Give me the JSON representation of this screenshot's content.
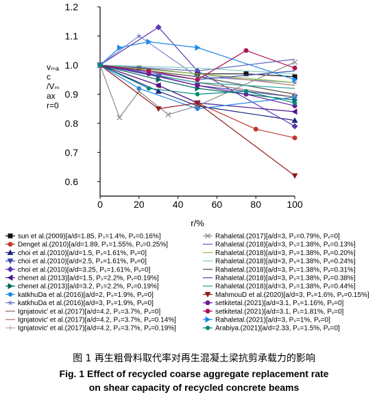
{
  "chart_data": {
    "type": "line",
    "xlabel": "r/%",
    "ylabel_lines": [
      "vₘₐ",
      "c",
      "/Vₘ",
      "ax",
      "r=0"
    ],
    "x_ticks": [
      0,
      20,
      40,
      60,
      80,
      100
    ],
    "y_ticks": [
      0.6,
      0.7,
      0.8,
      0.9,
      1.0,
      1.1,
      1.2
    ],
    "y_tick_labels": [
      "0.6",
      "0.7",
      "0.8",
      "0.9",
      "1.0",
      "1.1",
      "1.2"
    ],
    "xlim": [
      0,
      100
    ],
    "ylim": [
      0.55,
      1.2
    ],
    "grid": false,
    "legend_placement": "below",
    "series": [
      {
        "name": "sun et al.(2009)[a/d=1.85, Pₛ=1.4%, Pᵥ=0.16%]",
        "color": "#111111",
        "marker": "square",
        "x": [
          0,
          20,
          50,
          75,
          100
        ],
        "y": [
          1.0,
          0.99,
          0.97,
          0.97,
          0.96
        ]
      },
      {
        "name": "Denget al.(2010)[a/d=1.89, Pₛ=1.55%, Pᵥ=0.25%]",
        "color": "#c0392b",
        "marker": "circle",
        "x": [
          0,
          30,
          50,
          80,
          100
        ],
        "y": [
          1.0,
          0.93,
          0.87,
          0.78,
          0.75
        ]
      },
      {
        "name": "choi et al.(2010)[a/d=1.5, Pₛ=1.61%, Pᵥ=0]",
        "color": "#1a237e",
        "marker": "triangle",
        "x": [
          0,
          30,
          50,
          100
        ],
        "y": [
          1.0,
          0.91,
          0.86,
          0.81
        ]
      },
      {
        "name": "choi et al.(2010)[a/d=2.5, Pₛ=1.61%, Pᵥ=0]",
        "color": "#3949ab",
        "marker": "triangle-down",
        "x": [
          0,
          30,
          50,
          100
        ],
        "y": [
          1.0,
          0.96,
          0.93,
          0.89
        ]
      },
      {
        "name": "choi et al.(2010)[a/d=3.25, Pₛ=1.61%, Pᵥ=0]",
        "color": "#5e35b1",
        "marker": "diamond",
        "x": [
          0,
          30,
          50,
          100
        ],
        "y": [
          1.0,
          1.13,
          0.98,
          0.79
        ]
      },
      {
        "name": "chenet al.(2013)[a/d=1.5, Pₛ=2.2%, Pᵥ=0.19%]",
        "color": "#4a148c",
        "marker": "triangle-left",
        "x": [
          0,
          30,
          50,
          100
        ],
        "y": [
          1.0,
          0.93,
          0.87,
          0.84
        ]
      },
      {
        "name": "chenet al.(2013)[a/d=3.2, Pₛ=2.2%, Pᵥ=0.19%]",
        "color": "#00695c",
        "marker": "triangle-right",
        "x": [
          0,
          30,
          50,
          100
        ],
        "y": [
          1.0,
          0.95,
          0.92,
          0.88
        ]
      },
      {
        "name": "katkhuDa et al.(2016)[a/d=2, Pₛ=1.9%, Pᵥ=0]",
        "color": "#1e88e5",
        "marker": "hexagon",
        "x": [
          0,
          20,
          50,
          100
        ],
        "y": [
          1.0,
          0.92,
          0.85,
          0.89
        ]
      },
      {
        "name": "katkhuDa et al.(2016)[a/d=3, Pₛ=1.9%, Pᵥ=0]",
        "color": "#7986cb",
        "marker": "star",
        "x": [
          0,
          20,
          50,
          100
        ],
        "y": [
          1.0,
          1.1,
          0.96,
          0.94
        ]
      },
      {
        "name": "Ignjatovic' et al.(2017)[a/d=4.2, Pₛ=3.7%, Pᵥ=0]",
        "color": "#8d6e63",
        "marker": "none",
        "x": [
          0,
          50,
          100
        ],
        "y": [
          1.0,
          0.94,
          0.89
        ]
      },
      {
        "name": "Ignjatovic' et al.(2017)[a/d=4.2, Pₛ=3.7%, Pᵥ=0.14%]",
        "color": "#b07a6e",
        "marker": "none",
        "x": [
          0,
          50,
          100
        ],
        "y": [
          1.0,
          0.97,
          0.93
        ]
      },
      {
        "name": "Ignjatovic' et al.(2017)[a/d=4.2, Pₛ=3.7%, Pᵥ=0.19%]",
        "color": "#c9a9a1",
        "marker": "plus",
        "x": [
          0,
          50,
          100
        ],
        "y": [
          1.0,
          0.96,
          0.9
        ]
      },
      {
        "name": "Rahaletal.(2017)[a/d=3, Pₛ=0.79%, Pᵥ=0]",
        "color": "#888888",
        "marker": "x",
        "x": [
          0,
          10,
          20,
          35,
          50,
          100
        ],
        "y": [
          1.0,
          0.82,
          0.91,
          0.83,
          0.86,
          1.01
        ]
      },
      {
        "name": "Rahaletal.(2018)[a/d=3, Pₛ=1.38%, Pᵥ=0.13%]",
        "color": "#5c6bc0",
        "marker": "none",
        "x": [
          0,
          50,
          100
        ],
        "y": [
          1.0,
          0.98,
          1.02
        ]
      },
      {
        "name": "Rahaletal.(2018)[a/d=3, Pₛ=1.38%, Pᵥ=0.20%]",
        "color": "#8bc34a",
        "marker": "none",
        "x": [
          0,
          50,
          100
        ],
        "y": [
          1.0,
          0.97,
          0.94
        ]
      },
      {
        "name": "Rahaletal.(2018)[a/d=3, Pₛ=1.38%, Pᵥ=0.24%]",
        "color": "#80cbc4",
        "marker": "none",
        "x": [
          0,
          50,
          100
        ],
        "y": [
          1.0,
          0.99,
          0.97
        ]
      },
      {
        "name": "Rahaletal.(2018)[a/d=3, Pₛ=1.38%, Pᵥ=0.31%]",
        "color": "#555555",
        "marker": "none",
        "x": [
          0,
          50,
          100
        ],
        "y": [
          1.0,
          0.96,
          0.9
        ]
      },
      {
        "name": "Rahaletal.(2018)[a/d=3, Pₛ=1.38%, Pᵥ=0.38%]",
        "color": "#3f51b5",
        "marker": "none",
        "x": [
          0,
          50,
          100
        ],
        "y": [
          1.0,
          0.95,
          0.98
        ]
      },
      {
        "name": "Rahaletal.(2018)[a/d=3, Pₛ=1.38%, Pᵥ=0.44%]",
        "color": "#26a69a",
        "marker": "none",
        "x": [
          0,
          50,
          100
        ],
        "y": [
          1.0,
          0.94,
          0.92
        ]
      },
      {
        "name": "MahmouD et al.(2020)[a/d=3, Pₛ=1.6%, Pᵥ=0.15%]",
        "color": "#8e1b1b",
        "marker": "triangle-down",
        "x": [
          0,
          30,
          50,
          100
        ],
        "y": [
          1.0,
          0.85,
          0.87,
          0.62
        ]
      },
      {
        "name": "setkitetal.(2021)[a/d=3.1, Pₛ=1.16%, Pᵥ=0]",
        "color": "#6a1b9a",
        "marker": "circle",
        "x": [
          0,
          25,
          50,
          75,
          100
        ],
        "y": [
          1.0,
          0.97,
          0.93,
          0.9,
          0.86
        ]
      },
      {
        "name": "setkitetal.(2021)[a/d=3.1, Pₛ=1.81%, Pᵥ=0]",
        "color": "#ad1457",
        "marker": "circle",
        "x": [
          0,
          25,
          50,
          75,
          100
        ],
        "y": [
          1.0,
          0.98,
          0.95,
          1.05,
          0.99
        ]
      },
      {
        "name": "Rahaletal.(2021)[a/d=3, Pₛ=1%, Pᵥ=0]",
        "color": "#1e88e5",
        "marker": "triangle-right",
        "x": [
          0,
          10,
          25,
          50,
          100
        ],
        "y": [
          1.0,
          1.06,
          1.08,
          1.06,
          0.95
        ]
      },
      {
        "name": "Arabiya.(2021)[a/d=2.33, Pₛ=1.5%, Pᵥ=0]",
        "color": "#00897b",
        "marker": "hexagon",
        "x": [
          0,
          25,
          50,
          75,
          100
        ],
        "y": [
          1.0,
          0.92,
          0.9,
          0.91,
          0.87
        ]
      }
    ]
  },
  "caption": {
    "cn": "图 1 再生粗骨料取代率对再生混凝土梁抗剪承载力的影响",
    "en_line1": "Fig. 1 Effect of recycled coarse aggregate replacement rate",
    "en_line2": "on shear capacity of recycled concrete beams"
  }
}
